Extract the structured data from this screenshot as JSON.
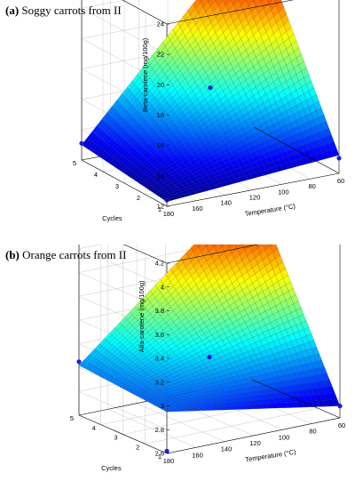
{
  "chart_data": [
    {
      "type": "surface3d",
      "title_letter": "(a)",
      "title_text": "Soggy carrots from II",
      "xlabel": "Temperature (°C)",
      "ylabel": "Cycles",
      "zlabel": "Beta-carotene (mg/100g)",
      "x_ticks": [
        180,
        160,
        140,
        120,
        100,
        80,
        60
      ],
      "y_ticks": [
        1,
        2,
        3,
        4,
        5
      ],
      "z_ticks": [
        12,
        14,
        16,
        18,
        20,
        22,
        24
      ],
      "xlim": [
        60,
        180
      ],
      "ylim": [
        1,
        5
      ],
      "zlim": [
        12,
        24
      ],
      "corner_values": {
        "T180_C1": 12.3,
        "T60_C1": 13.2,
        "T180_C5": 13.0,
        "T60_C5": 25.2
      },
      "points": [
        {
          "temperature": 180,
          "cycles": 1,
          "value": 12.4,
          "hollow": true
        },
        {
          "temperature": 180,
          "cycles": 5,
          "value": 13.1
        },
        {
          "temperature": 60,
          "cycles": 1,
          "value": 13.0
        },
        {
          "temperature": 60,
          "cycles": 5,
          "value": 25.0
        },
        {
          "temperature": 120,
          "cycles": 3,
          "value": 17.2
        }
      ]
    },
    {
      "type": "surface3d",
      "title_letter": "(b)",
      "title_text": "Orange carrots from II",
      "xlabel": "Temperature (°C)",
      "ylabel": "Cycles",
      "zlabel": "Alfa-carotene (mg/100g)",
      "x_ticks": [
        180,
        160,
        140,
        120,
        100,
        80,
        60
      ],
      "y_ticks": [
        1,
        2,
        3,
        4,
        5
      ],
      "z_ticks": [
        2.6,
        2.8,
        3,
        3.2,
        3.4,
        3.6,
        3.8,
        4,
        4.2
      ],
      "xlim": [
        60,
        180
      ],
      "ylim": [
        1,
        5
      ],
      "zlim": [
        2.6,
        4.2
      ],
      "corner_values": {
        "T180_C1": 2.95,
        "T60_C1": 2.7,
        "T180_C5": 3.02,
        "T60_C5": 4.25
      },
      "points": [
        {
          "temperature": 180,
          "cycles": 1,
          "value": 2.62
        },
        {
          "temperature": 180,
          "cycles": 5,
          "value": 3.05
        },
        {
          "temperature": 60,
          "cycles": 1,
          "value": 2.7
        },
        {
          "temperature": 60,
          "cycles": 5,
          "value": 4.25
        },
        {
          "temperature": 120,
          "cycles": 3,
          "value": 3.1
        }
      ]
    }
  ]
}
